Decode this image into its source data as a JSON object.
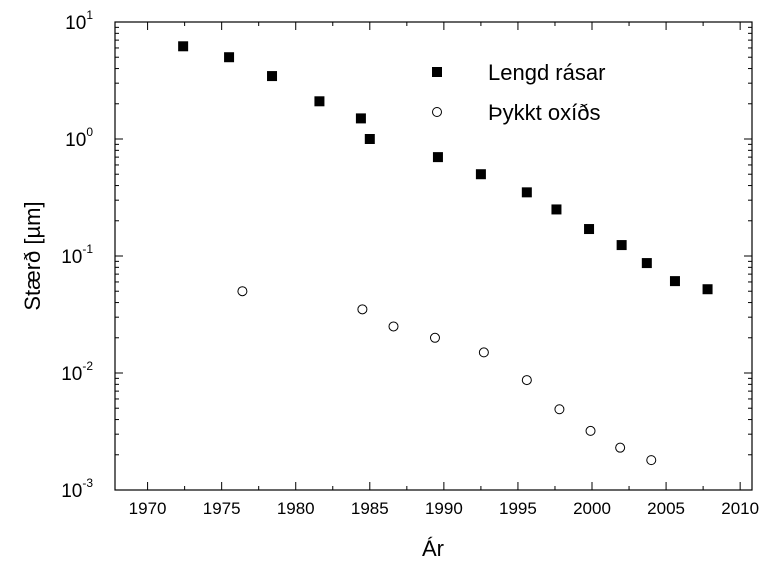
{
  "chart_data": {
    "type": "scatter",
    "xlabel": "Ár",
    "ylabel": "Stærð [µm]",
    "xlim": [
      1967.8,
      2010.8
    ],
    "xticks": [
      1970,
      1975,
      1980,
      1985,
      1990,
      1995,
      2000,
      2005,
      2010
    ],
    "ylim": [
      0.001,
      10
    ],
    "ylog": true,
    "yticks": [
      {
        "value": 10,
        "label": "10",
        "exponent": "1"
      },
      {
        "value": 1,
        "label": "10",
        "exponent": "0"
      },
      {
        "value": 0.1,
        "label": "10",
        "exponent": "-1"
      },
      {
        "value": 0.01,
        "label": "10",
        "exponent": "-2"
      },
      {
        "value": 0.001,
        "label": "10",
        "exponent": "-3"
      }
    ],
    "legend": "upper right",
    "series": [
      {
        "name": "Lengd rásar",
        "marker": "square",
        "color": "#000000",
        "x": [
          1972.4,
          1975.5,
          1978.4,
          1981.6,
          1984.4,
          1985.0,
          1989.6,
          1992.5,
          1995.6,
          1997.6,
          1999.8,
          2002.0,
          2003.7,
          2005.6,
          2007.8
        ],
        "values": [
          6.2,
          5.0,
          3.45,
          2.1,
          1.5,
          1.0,
          0.7,
          0.5,
          0.35,
          0.25,
          0.17,
          0.124,
          0.087,
          0.061,
          0.052
        ]
      },
      {
        "name": "Þykkt oxíðs",
        "marker": "circle",
        "color": "#000000",
        "x": [
          1976.4,
          1984.5,
          1986.6,
          1989.4,
          1992.7,
          1995.6,
          1997.8,
          1999.9,
          2001.9,
          2004.0
        ],
        "values": [
          0.05,
          0.035,
          0.025,
          0.02,
          0.015,
          0.0087,
          0.0049,
          0.0032,
          0.0023,
          0.0018
        ]
      }
    ]
  }
}
